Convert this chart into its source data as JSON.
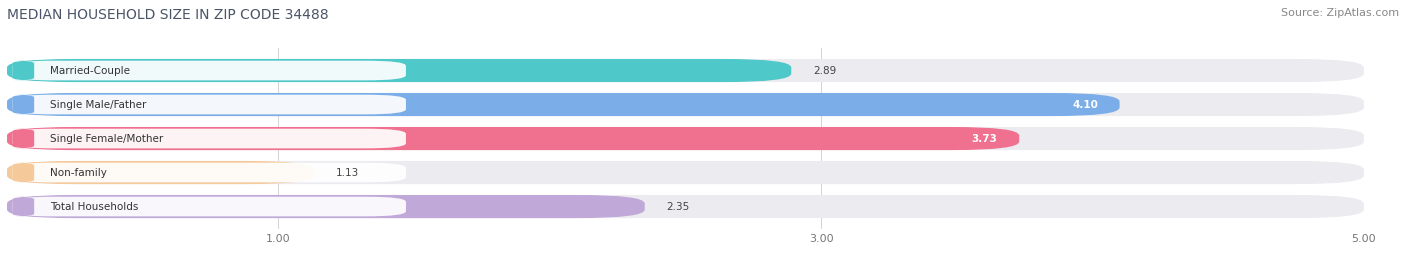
{
  "title": "MEDIAN HOUSEHOLD SIZE IN ZIP CODE 34488",
  "source": "Source: ZipAtlas.com",
  "categories": [
    "Married-Couple",
    "Single Male/Father",
    "Single Female/Mother",
    "Non-family",
    "Total Households"
  ],
  "values": [
    2.89,
    4.1,
    3.73,
    1.13,
    2.35
  ],
  "bar_colors": [
    "#4EC8C8",
    "#7BAEE8",
    "#F07090",
    "#F5C99A",
    "#C0A8D8"
  ],
  "label_indicator_colors": [
    "#4EC8C8",
    "#7BAEE8",
    "#F07090",
    "#F5C99A",
    "#C0A8D8"
  ],
  "value_inside": [
    false,
    true,
    true,
    false,
    false
  ],
  "xlim": [
    0,
    5.0
  ],
  "xticks": [
    1.0,
    3.0,
    5.0
  ],
  "background_color": "#ffffff",
  "bar_background_color": "#ebebf0",
  "title_color": "#4a5568",
  "source_color": "#888888",
  "title_fontsize": 10,
  "source_fontsize": 8,
  "label_fontsize": 7.5,
  "value_fontsize": 7.5
}
